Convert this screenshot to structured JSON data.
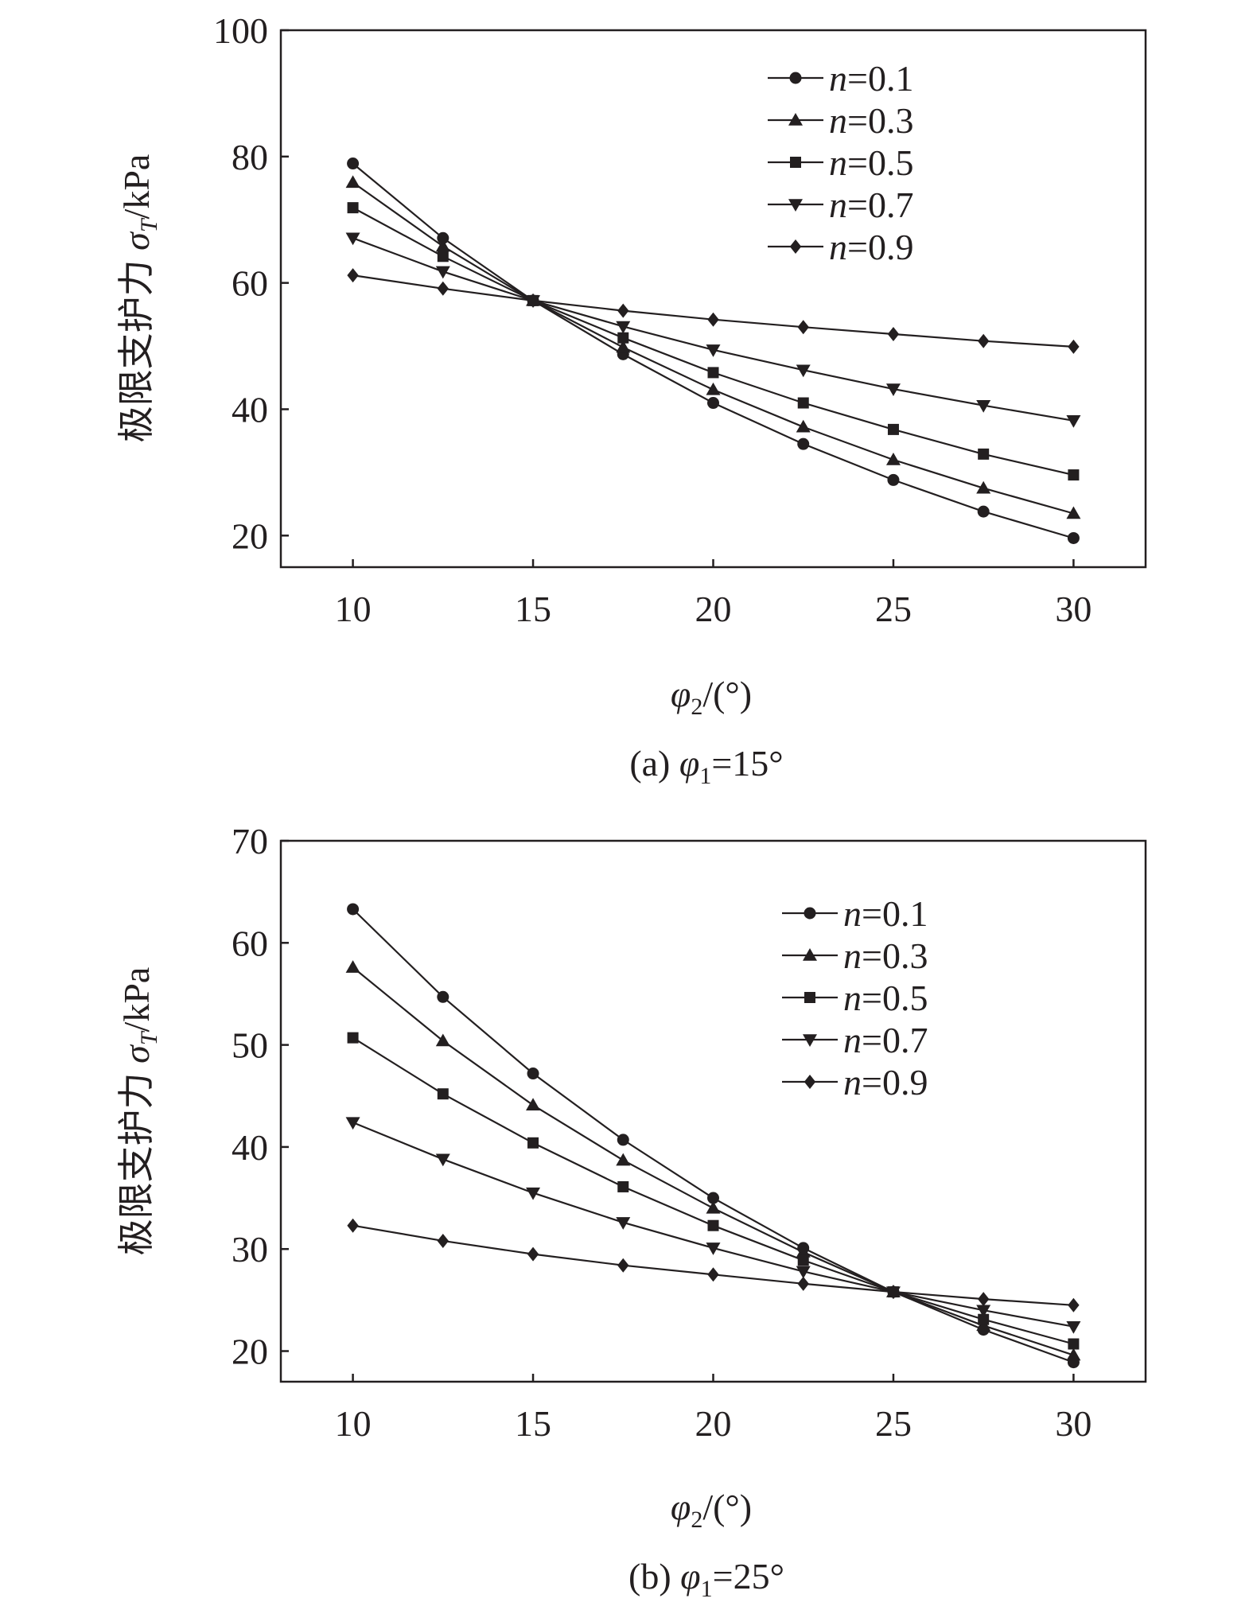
{
  "figure": {
    "panels": [
      {
        "id": "a",
        "caption": {
          "prefix": "(a) ",
          "var": "φ",
          "sub": "1",
          "suffix": "=15°"
        },
        "ylabel": {
          "text": "极限支护力 ",
          "var": "σ",
          "sub": "T",
          "suffix": "/kPa"
        },
        "xlabel": {
          "var": "φ",
          "sub": "2",
          "suffix": "/(°)"
        }
      },
      {
        "id": "b",
        "caption": {
          "prefix": "(b) ",
          "var": "φ",
          "sub": "1",
          "suffix": "=25°"
        },
        "ylabel": {
          "text": "极限支护力 ",
          "var": "σ",
          "sub": "T",
          "suffix": "/kPa"
        },
        "xlabel": {
          "var": "φ",
          "sub": "2",
          "suffix": "/(°)"
        }
      }
    ]
  },
  "chart_data": [
    {
      "type": "line",
      "title": "(a) φ1=15°",
      "xlabel": "φ2/(°)",
      "ylabel": "极限支护力 σT/kPa",
      "xlim": [
        8,
        32
      ],
      "ylim": [
        15,
        100
      ],
      "xticks": [
        10,
        15,
        20,
        25,
        30
      ],
      "yticks": [
        20,
        40,
        60,
        80,
        100
      ],
      "grid": false,
      "legend_position": "top-right",
      "x": [
        10,
        12.5,
        15,
        17.5,
        20,
        22.5,
        25,
        27.5,
        30
      ],
      "series": [
        {
          "name": "n=0.1",
          "marker": "circle",
          "values": [
            78.9,
            67.1,
            57.2,
            48.7,
            41.0,
            34.5,
            28.8,
            23.8,
            19.6
          ]
        },
        {
          "name": "n=0.3",
          "marker": "triangle-up",
          "values": [
            75.9,
            65.8,
            57.2,
            49.8,
            43.1,
            37.2,
            32.0,
            27.5,
            23.5
          ]
        },
        {
          "name": "n=0.5",
          "marker": "square",
          "values": [
            71.9,
            64.2,
            57.2,
            51.3,
            45.8,
            41.0,
            36.8,
            32.9,
            29.6
          ]
        },
        {
          "name": "n=0.7",
          "marker": "triangle-down",
          "values": [
            67.1,
            61.8,
            57.2,
            53.1,
            49.4,
            46.2,
            43.2,
            40.6,
            38.2
          ]
        },
        {
          "name": "n=0.9",
          "marker": "diamond",
          "values": [
            61.2,
            59.1,
            57.2,
            55.6,
            54.2,
            53.0,
            51.9,
            50.8,
            49.9
          ]
        }
      ]
    },
    {
      "type": "line",
      "title": "(b) φ1=25°",
      "xlabel": "φ2/(°)",
      "ylabel": "极限支护力 σT/kPa",
      "xlim": [
        8,
        32
      ],
      "ylim": [
        17,
        70
      ],
      "xticks": [
        10,
        15,
        20,
        25,
        30
      ],
      "yticks": [
        20,
        30,
        40,
        50,
        60,
        70
      ],
      "grid": false,
      "legend_position": "top-right",
      "x": [
        10,
        12.5,
        15,
        17.5,
        20,
        22.5,
        25,
        27.5,
        30
      ],
      "series": [
        {
          "name": "n=0.1",
          "marker": "circle",
          "values": [
            63.3,
            54.7,
            47.2,
            40.7,
            35.0,
            30.1,
            25.8,
            22.1,
            18.9
          ]
        },
        {
          "name": "n=0.3",
          "marker": "triangle-up",
          "values": [
            57.6,
            50.4,
            44.1,
            38.7,
            34.0,
            29.7,
            25.8,
            22.5,
            19.6
          ]
        },
        {
          "name": "n=0.5",
          "marker": "square",
          "values": [
            50.7,
            45.2,
            40.4,
            36.1,
            32.3,
            28.9,
            25.8,
            23.1,
            20.7
          ]
        },
        {
          "name": "n=0.7",
          "marker": "triangle-down",
          "values": [
            42.4,
            38.8,
            35.5,
            32.6,
            30.1,
            27.8,
            25.8,
            24.0,
            22.4
          ]
        },
        {
          "name": "n=0.9",
          "marker": "diamond",
          "values": [
            32.3,
            30.8,
            29.5,
            28.4,
            27.5,
            26.6,
            25.8,
            25.1,
            24.5
          ]
        }
      ]
    }
  ]
}
